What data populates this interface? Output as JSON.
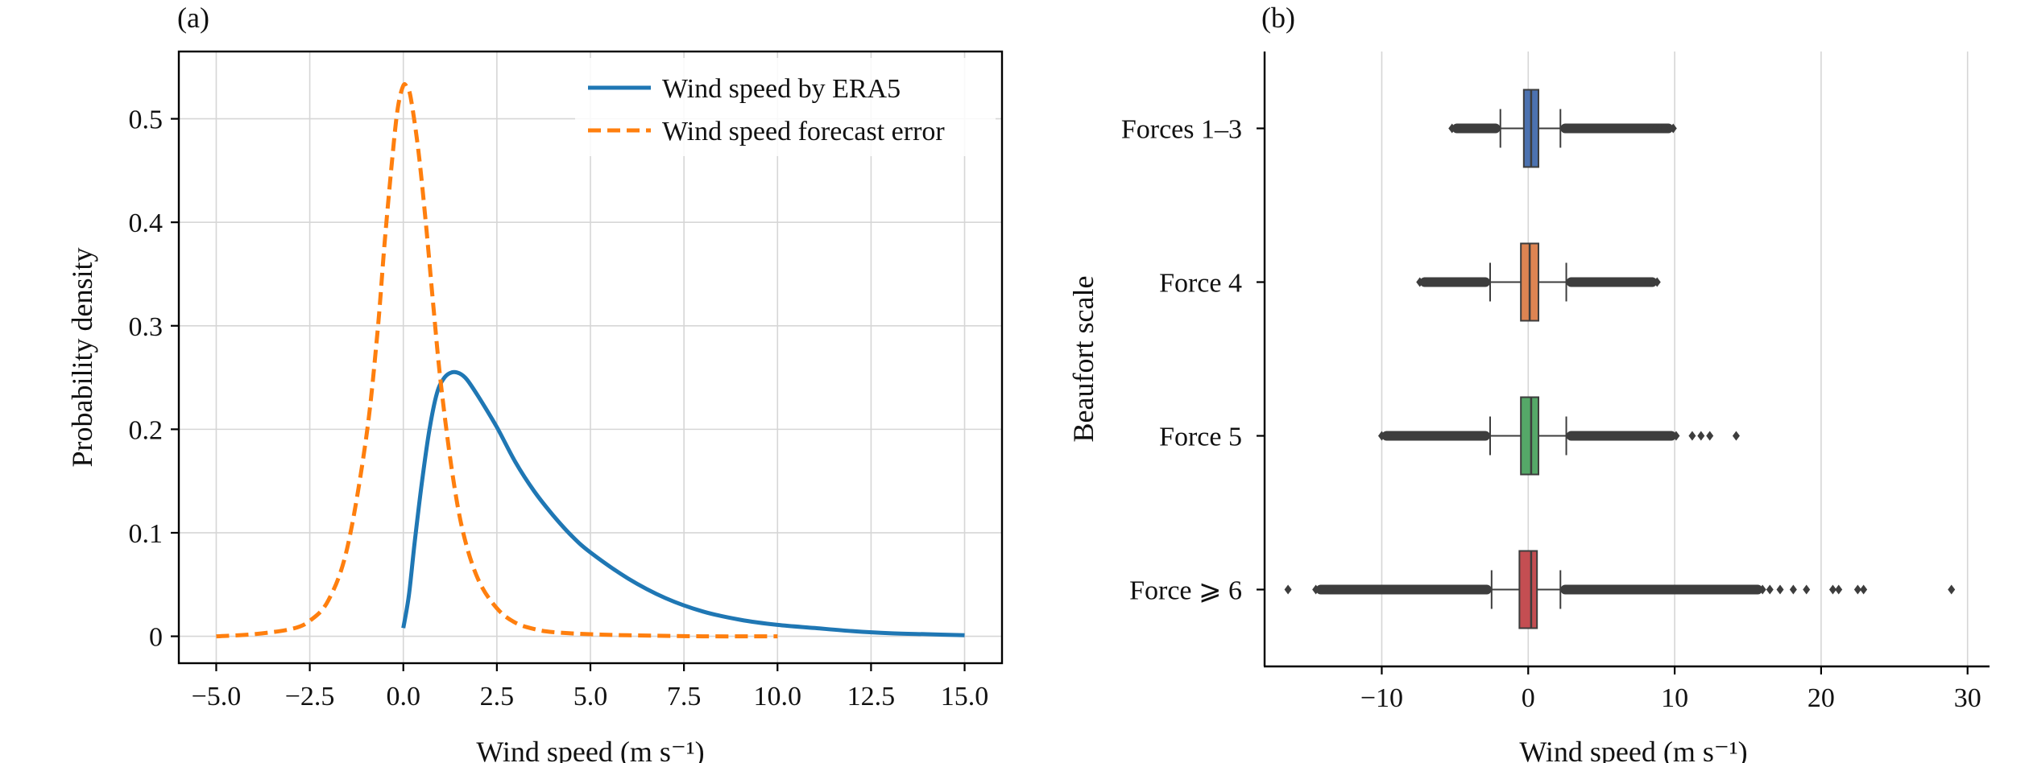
{
  "panel_a": {
    "label": "(a)",
    "xlabel": "Wind speed (m s⁻¹)",
    "ylabel": "Probability density",
    "legend": [
      {
        "label": "Wind speed by ERA5",
        "style": "solid",
        "color": "#1f77b4"
      },
      {
        "label": "Wind speed forecast error",
        "style": "dashed",
        "color": "#ff7f0e"
      }
    ]
  },
  "panel_b": {
    "label": "(b)",
    "xlabel": "Wind speed (m s⁻¹)",
    "ylabel": "Beaufort scale"
  },
  "chart_data": [
    {
      "type": "line",
      "title": "",
      "xlabel": "Wind speed (m s⁻¹)",
      "ylabel": "Probability density",
      "xlim": [
        -6.0,
        16.0
      ],
      "ylim": [
        -0.026,
        0.565
      ],
      "xticks": [
        -5.0,
        -2.5,
        0.0,
        2.5,
        5.0,
        7.5,
        10.0,
        12.5,
        15.0
      ],
      "xtick_labels": [
        "−5.0",
        "−2.5",
        "0.0",
        "2.5",
        "5.0",
        "7.5",
        "10.0",
        "12.5",
        "15.0"
      ],
      "yticks": [
        0,
        0.1,
        0.2,
        0.3,
        0.4,
        0.5
      ],
      "ytick_labels": [
        "0",
        "0.1",
        "0.2",
        "0.3",
        "0.4",
        "0.5"
      ],
      "grid": true,
      "legend_position": "top-right",
      "series": [
        {
          "name": "Wind speed by ERA5",
          "color": "#1f77b4",
          "style": "solid",
          "x": [
            0.0,
            0.15,
            0.3,
            0.5,
            0.7,
            0.9,
            1.1,
            1.3,
            1.5,
            1.7,
            2.0,
            2.5,
            3.0,
            3.5,
            4.0,
            4.5,
            5.0,
            6.0,
            7.0,
            8.0,
            9.0,
            10.0,
            11.0,
            12.0,
            13.0,
            14.0,
            15.0
          ],
          "y": [
            0.008,
            0.04,
            0.09,
            0.15,
            0.2,
            0.235,
            0.25,
            0.255,
            0.254,
            0.248,
            0.232,
            0.202,
            0.168,
            0.14,
            0.117,
            0.097,
            0.081,
            0.056,
            0.037,
            0.024,
            0.016,
            0.011,
            0.008,
            0.005,
            0.003,
            0.002,
            0.001
          ]
        },
        {
          "name": "Wind speed forecast error",
          "color": "#ff7f0e",
          "style": "dashed",
          "x": [
            -5.0,
            -4.0,
            -3.0,
            -2.5,
            -2.0,
            -1.5,
            -1.0,
            -0.7,
            -0.5,
            -0.3,
            -0.15,
            0.0,
            0.1,
            0.2,
            0.4,
            0.6,
            0.8,
            1.0,
            1.3,
            1.6,
            2.0,
            2.5,
            3.0,
            3.5,
            4.0,
            5.0,
            6.0,
            8.0,
            10.0
          ],
          "y": [
            0.0,
            0.002,
            0.007,
            0.015,
            0.035,
            0.085,
            0.19,
            0.29,
            0.38,
            0.46,
            0.51,
            0.532,
            0.53,
            0.52,
            0.47,
            0.4,
            0.32,
            0.245,
            0.16,
            0.1,
            0.055,
            0.027,
            0.013,
            0.007,
            0.004,
            0.002,
            0.001,
            0.0,
            0.0
          ]
        }
      ]
    },
    {
      "type": "box",
      "title": "",
      "orientation": "horizontal",
      "xlabel": "Wind speed (m s⁻¹)",
      "ylabel": "Beaufort scale",
      "xlim": [
        -18.0,
        31.5
      ],
      "xticks": [
        -10,
        0,
        10,
        20,
        30
      ],
      "xtick_labels": [
        "−10",
        "0",
        "10",
        "20",
        "30"
      ],
      "grid": true,
      "categories": [
        "Forces 1–3",
        "Force 4",
        "Force 5",
        "Force ⩾ 6"
      ],
      "boxes": [
        {
          "category": "Forces 1–3",
          "color": "#4c72b0",
          "q1": -0.3,
          "median": 0.2,
          "q3": 0.7,
          "whisker_low": -1.9,
          "whisker_high": 2.2,
          "outlier_range_low": [
            -5.2,
            -1.9
          ],
          "outlier_range_high": [
            2.2,
            9.9
          ],
          "outlier_points": [
            -5.2,
            -4.8,
            8.4,
            8.7,
            9.0,
            9.3,
            9.9
          ]
        },
        {
          "category": "Force 4",
          "color": "#dd8452",
          "q1": -0.5,
          "median": 0.1,
          "q3": 0.7,
          "whisker_low": -2.6,
          "whisker_high": 2.6,
          "outlier_range_low": [
            -7.4,
            -2.6
          ],
          "outlier_range_high": [
            2.6,
            8.8
          ],
          "outlier_points": [
            -7.4,
            -7.1,
            8.2,
            8.5,
            8.8
          ]
        },
        {
          "category": "Force 5",
          "color": "#55a868",
          "q1": -0.5,
          "median": 0.2,
          "q3": 0.7,
          "whisker_low": -2.6,
          "whisker_high": 2.6,
          "outlier_range_low": [
            -10.0,
            -2.6
          ],
          "outlier_range_high": [
            2.6,
            10.1
          ],
          "outlier_points": [
            -10.0,
            -9.6,
            9.8,
            10.1,
            11.2,
            11.8,
            12.4,
            14.2
          ]
        },
        {
          "category": "Force ⩾ 6",
          "color": "#c44e52",
          "q1": -0.6,
          "median": 0.2,
          "q3": 0.6,
          "whisker_low": -2.5,
          "whisker_high": 2.2,
          "outlier_range_low": [
            -14.5,
            -2.5
          ],
          "outlier_range_high": [
            2.2,
            16.0
          ],
          "outlier_points": [
            -16.4,
            -14.5,
            -14.0,
            -13.5,
            16.0,
            16.5,
            17.2,
            18.1,
            19.0,
            20.8,
            21.2,
            22.5,
            22.9,
            28.9
          ]
        }
      ]
    }
  ]
}
